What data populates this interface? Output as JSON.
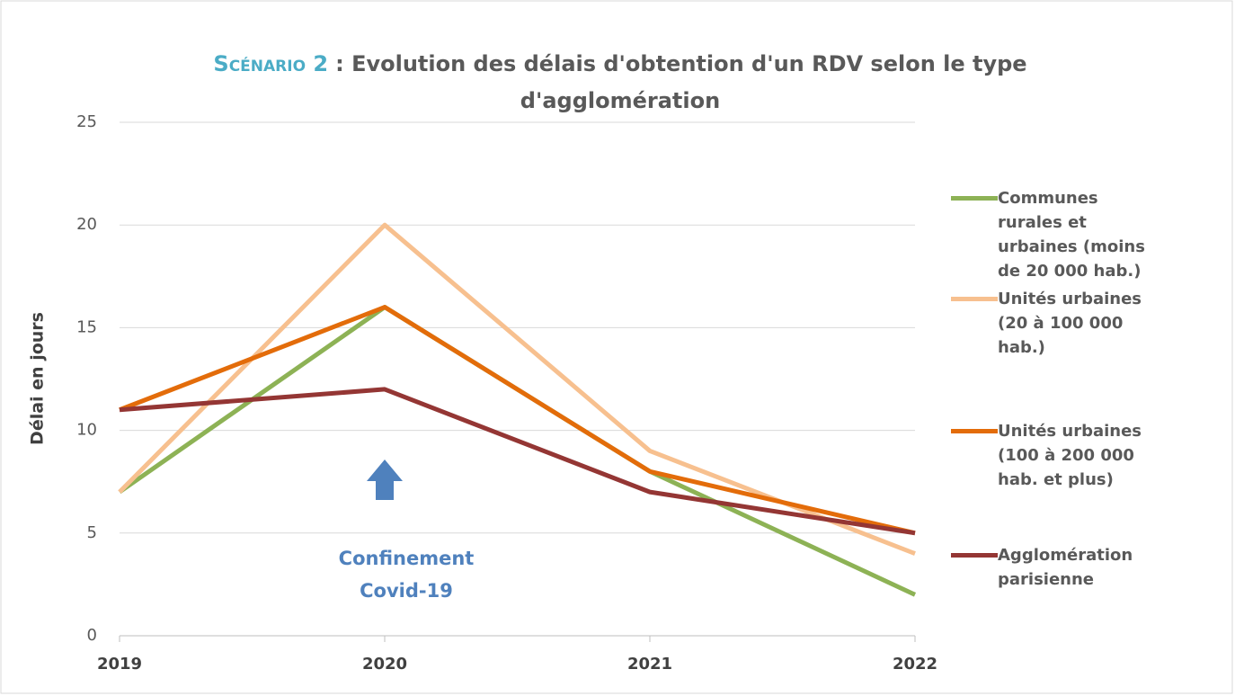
{
  "chart_data": {
    "type": "line",
    "title_highlight": "Scénario 2",
    "title_lines": [
      ": Evolution des délais d'obtention d'un RDV selon le type",
      "d'agglomération"
    ],
    "y_label": "Délai en jours",
    "x": [
      2019,
      2020,
      2021,
      2022
    ],
    "xlim": [
      2019,
      2022
    ],
    "xticks": [
      2019,
      2020,
      2021,
      2022
    ],
    "ylim": [
      0,
      25
    ],
    "yticks": [
      0,
      5,
      10,
      15,
      20,
      25
    ],
    "grid": true,
    "legend": "right",
    "annotation_lines": [
      "Confinement",
      "Covid-19"
    ],
    "series": [
      {
        "name": "Communes rurales et urbaines (moins de 20 000 hab.)",
        "color": "#8db255",
        "values": [
          7,
          16,
          8,
          2
        ]
      },
      {
        "name": "Unités urbaines (20 à 100 000 hab.)",
        "color": "#f7c08f",
        "values": [
          7,
          20,
          9,
          4
        ]
      },
      {
        "name": "Unités urbaines (100 à 200 000 hab. et plus)",
        "color": "#e36c0a",
        "values": [
          11,
          16,
          8,
          5
        ]
      },
      {
        "name": "Agglomération parisienne",
        "color": "#943634",
        "values": [
          11,
          12,
          7,
          5
        ]
      }
    ]
  }
}
